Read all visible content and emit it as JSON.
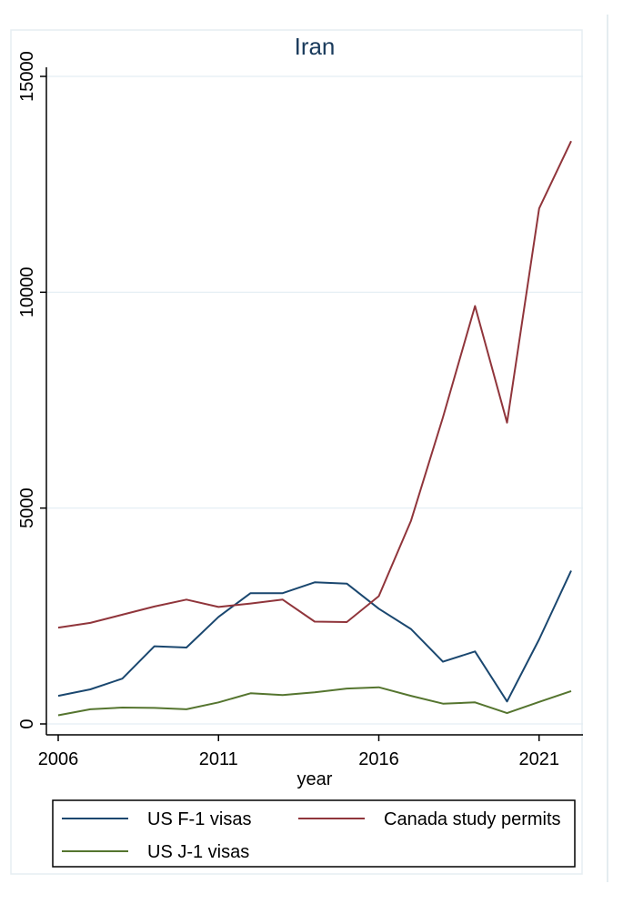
{
  "chart_data": {
    "type": "line",
    "title": "Iran",
    "xlabel": "year",
    "ylabel": "",
    "x": [
      2006,
      2007,
      2008,
      2009,
      2010,
      2011,
      2012,
      2013,
      2014,
      2015,
      2016,
      2017,
      2018,
      2019,
      2020,
      2021,
      2022
    ],
    "xlim": [
      2006,
      2022
    ],
    "ylim": [
      0,
      15000
    ],
    "xticks": [
      "2006",
      "2011",
      "2016",
      "2021"
    ],
    "yticks": [
      "0",
      "5000",
      "10000",
      "15000"
    ],
    "grid": true,
    "legend_position": "bottom",
    "series": [
      {
        "name": "US F-1 visas",
        "color": "#1a476f",
        "values": [
          650,
          800,
          1050,
          1800,
          1770,
          2480,
          3030,
          3030,
          3280,
          3250,
          2670,
          2200,
          1440,
          1680,
          520,
          1960,
          3550
        ]
      },
      {
        "name": "Canada study permits",
        "color": "#90353b",
        "values": [
          2230,
          2340,
          2530,
          2720,
          2880,
          2710,
          2790,
          2880,
          2370,
          2360,
          2960,
          4700,
          7100,
          9680,
          6980,
          11940,
          13500
        ]
      },
      {
        "name": "US J-1 visas",
        "color": "#55752f",
        "values": [
          200,
          340,
          380,
          370,
          340,
          500,
          710,
          670,
          730,
          820,
          850,
          650,
          470,
          500,
          250,
          510,
          760
        ]
      }
    ]
  }
}
